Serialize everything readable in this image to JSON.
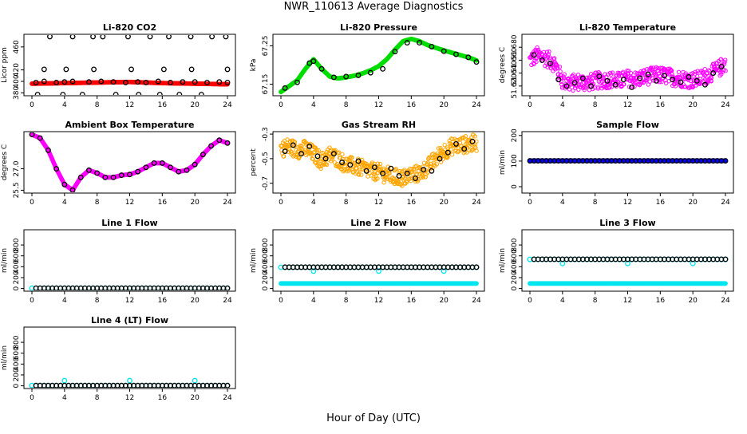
{
  "page": {
    "title": "NWR_110613  Average Diagnostics",
    "xlabel": "Hour of Day (UTC)"
  },
  "colors": {
    "red": "#ff0000",
    "green": "#00dd00",
    "magenta": "#ff00ff",
    "orange": "#ffa500",
    "blue": "#0000ff",
    "cyan": "#00e5ee",
    "black": "#000000"
  },
  "chart_data": [
    {
      "id": "li820-co2",
      "type": "scatter",
      "title": "Li-820 CO2",
      "ylabel": "Licor ppm",
      "xlim": [
        0,
        24
      ],
      "ylim": [
        375,
        482
      ],
      "xticks": [
        0,
        4,
        8,
        12,
        16,
        20,
        24
      ],
      "yticks": [
        380,
        400,
        420,
        460
      ],
      "ytick_labels": [
        "380",
        "400",
        "420",
        "460"
      ],
      "series": [
        {
          "name": "dense",
          "color": "red",
          "style": "dense",
          "x": [
            0,
            4,
            8,
            12,
            16,
            20,
            24
          ],
          "y": [
            396,
            397,
            398,
            399,
            397,
            396,
            395
          ]
        },
        {
          "name": "avg-low",
          "color": "black",
          "style": "circle",
          "x": [
            0.5,
            1.5,
            3,
            4,
            5,
            7,
            8.5,
            10,
            11.5,
            13,
            14,
            15.5,
            17,
            18.5,
            20,
            21.5,
            23,
            24
          ],
          "y": [
            398,
            400,
            398,
            399,
            400,
            399,
            400,
            399,
            398,
            399,
            398,
            400,
            398,
            399,
            399,
            398,
            399,
            398
          ]
        },
        {
          "name": "outliers",
          "color": "black",
          "style": "circle",
          "x": [
            0.7,
            2.2,
            3.8,
            5,
            6.2,
            7.5,
            8.7,
            10.3,
            11.8,
            13.1,
            14.5,
            15.7,
            16.8,
            18.1,
            19.5,
            20.8,
            22.1,
            23.8,
            1.5,
            4.2,
            7.6,
            12.2,
            16.2,
            19.6,
            24
          ],
          "y": [
            377,
            478,
            377,
            478,
            377,
            478,
            478,
            377,
            478,
            377,
            478,
            377,
            478,
            377,
            478,
            377,
            478,
            478,
            421,
            421,
            421,
            421,
            421,
            421,
            421
          ]
        }
      ]
    },
    {
      "id": "li820-pressure",
      "type": "scatter",
      "title": "Li-820 Pressure",
      "ylabel": "kPa",
      "xlim": [
        0,
        24
      ],
      "ylim": [
        67.12,
        67.28
      ],
      "xticks": [
        0,
        4,
        8,
        12,
        16,
        20,
        24
      ],
      "yticks": [
        67.15,
        67.25
      ],
      "ytick_labels": [
        "67.15",
        "67.25"
      ],
      "series": [
        {
          "name": "dense",
          "color": "green",
          "style": "dense",
          "x": [
            0,
            1,
            2,
            3,
            4,
            5,
            6,
            7,
            8,
            9,
            10,
            11,
            12,
            13,
            14,
            15,
            16,
            17,
            18,
            19,
            20,
            21,
            22,
            23,
            24
          ],
          "y": [
            67.13,
            67.145,
            67.16,
            67.19,
            67.215,
            67.19,
            67.17,
            67.165,
            67.168,
            67.172,
            67.178,
            67.186,
            67.197,
            67.215,
            67.24,
            67.262,
            67.268,
            67.262,
            67.252,
            67.245,
            67.238,
            67.232,
            67.226,
            67.22,
            67.212
          ]
        },
        {
          "name": "avg",
          "color": "black",
          "style": "circle",
          "x": [
            0.5,
            2,
            3.5,
            4,
            5,
            6.5,
            8,
            9.5,
            11,
            12.5,
            14,
            15.5,
            17,
            18.5,
            20,
            21.5,
            23,
            24
          ],
          "y": [
            67.14,
            67.155,
            67.205,
            67.21,
            67.19,
            67.168,
            67.17,
            67.173,
            67.18,
            67.19,
            67.235,
            67.258,
            67.258,
            67.248,
            67.236,
            67.228,
            67.22,
            67.208
          ]
        }
      ]
    },
    {
      "id": "li820-temperature",
      "type": "scatter",
      "title": "Li-820 Temperature",
      "ylabel": "degrees C",
      "xlim": [
        0,
        24
      ],
      "ylim": [
        51.605,
        51.7
      ],
      "xticks": [
        0,
        4,
        8,
        12,
        16,
        20,
        24
      ],
      "yticks": [
        51.62,
        51.64,
        51.66,
        51.68
      ],
      "ytick_labels": [
        "51.620",
        "51.640",
        "51.660",
        "51.680"
      ],
      "series": [
        {
          "name": "dense",
          "color": "magenta",
          "style": "cloud",
          "x": [
            0,
            1,
            2,
            3,
            4,
            5,
            6,
            7,
            8,
            9,
            10,
            11,
            12,
            13,
            14,
            15,
            16,
            17,
            18,
            19,
            20,
            21,
            22,
            23,
            24
          ],
          "y": [
            51.66,
            51.668,
            51.663,
            51.655,
            51.628,
            51.624,
            51.627,
            51.625,
            51.628,
            51.629,
            51.63,
            51.628,
            51.632,
            51.63,
            51.634,
            51.636,
            51.637,
            51.635,
            51.632,
            51.631,
            51.629,
            51.632,
            51.638,
            51.645,
            51.655
          ],
          "spread": 0.013
        },
        {
          "name": "avg",
          "color": "black",
          "style": "circle",
          "x": [
            0.5,
            1.5,
            2.5,
            3.5,
            4.5,
            5.5,
            6.5,
            7.5,
            8.5,
            9.5,
            10.5,
            11.5,
            12.5,
            13.5,
            14.5,
            15.5,
            16.5,
            17.5,
            18.5,
            19.5,
            20.5,
            21.5,
            22.5,
            23.5
          ],
          "y": [
            51.668,
            51.66,
            51.655,
            51.63,
            51.62,
            51.625,
            51.632,
            51.62,
            51.635,
            51.628,
            51.622,
            51.63,
            51.618,
            51.632,
            51.638,
            51.628,
            51.636,
            51.63,
            51.626,
            51.634,
            51.628,
            51.622,
            51.64,
            51.65
          ]
        }
      ]
    },
    {
      "id": "ambient-box-temperature",
      "type": "scatter",
      "title": "Ambient Box Temperature",
      "ylabel": "degrees C",
      "xlim": [
        0,
        24
      ],
      "ylim": [
        25.3,
        29.6
      ],
      "xticks": [
        0,
        4,
        8,
        12,
        16,
        20,
        24
      ],
      "yticks": [
        25.5,
        27.0
      ],
      "ytick_labels": [
        "25.5",
        "27.0"
      ],
      "series": [
        {
          "name": "dense",
          "color": "magenta",
          "style": "dense",
          "x": [
            0,
            1,
            2,
            3,
            4,
            5,
            6,
            7,
            8,
            9,
            10,
            11,
            12,
            13,
            14,
            15,
            16,
            17,
            18,
            19,
            20,
            21,
            22,
            23,
            24
          ],
          "y": [
            29.4,
            29.15,
            28.3,
            27.0,
            25.9,
            25.5,
            26.4,
            26.9,
            26.7,
            26.4,
            26.4,
            26.55,
            26.6,
            26.8,
            27.1,
            27.4,
            27.4,
            27.1,
            26.8,
            26.9,
            27.3,
            28.0,
            28.6,
            29.0,
            28.8
          ]
        },
        {
          "name": "avg",
          "color": "black",
          "style": "circle",
          "x": [
            0,
            1,
            2,
            3,
            4,
            5,
            6,
            7,
            8,
            9,
            10,
            11,
            12,
            13,
            14,
            15,
            16,
            17,
            18,
            19,
            20,
            21,
            22,
            23,
            24
          ],
          "y": [
            29.4,
            29.15,
            28.3,
            27.0,
            25.9,
            25.5,
            26.4,
            26.9,
            26.7,
            26.4,
            26.4,
            26.55,
            26.6,
            26.8,
            27.1,
            27.4,
            27.4,
            27.1,
            26.8,
            26.9,
            27.3,
            28.0,
            28.6,
            29.0,
            28.8
          ]
        }
      ]
    },
    {
      "id": "gas-stream-rh",
      "type": "scatter",
      "title": "Gas Stream RH",
      "ylabel": "percent",
      "xlim": [
        0,
        24
      ],
      "ylim": [
        -0.78,
        -0.28
      ],
      "xticks": [
        0,
        4,
        8,
        12,
        16,
        20,
        24
      ],
      "yticks": [
        -0.7,
        -0.5,
        -0.3
      ],
      "ytick_labels": [
        "-0.7",
        "-0.5",
        "-0.3"
      ],
      "series": [
        {
          "name": "dense",
          "color": "orange",
          "style": "cloud",
          "x": [
            0,
            1,
            2,
            3,
            4,
            5,
            6,
            7,
            8,
            9,
            10,
            11,
            12,
            13,
            14,
            15,
            16,
            17,
            18,
            19,
            20,
            21,
            22,
            23,
            24
          ],
          "y": [
            -0.42,
            -0.4,
            -0.43,
            -0.42,
            -0.46,
            -0.52,
            -0.47,
            -0.5,
            -0.55,
            -0.56,
            -0.58,
            -0.6,
            -0.61,
            -0.63,
            -0.65,
            -0.66,
            -0.63,
            -0.62,
            -0.57,
            -0.5,
            -0.44,
            -0.4,
            -0.39,
            -0.38,
            -0.37
          ],
          "spread": 0.07
        },
        {
          "name": "avg",
          "color": "black",
          "style": "circle",
          "x": [
            0.5,
            1.5,
            2.5,
            3.5,
            4.5,
            5.5,
            6.5,
            7.5,
            8.5,
            9.5,
            10.5,
            11.5,
            12.5,
            13.5,
            14.5,
            15.5,
            16.5,
            17.5,
            18.5,
            19.5,
            20.5,
            21.5,
            22.5,
            23.5
          ],
          "y": [
            -0.44,
            -0.39,
            -0.46,
            -0.4,
            -0.48,
            -0.5,
            -0.46,
            -0.53,
            -0.55,
            -0.52,
            -0.6,
            -0.57,
            -0.62,
            -0.58,
            -0.64,
            -0.62,
            -0.66,
            -0.59,
            -0.6,
            -0.5,
            -0.45,
            -0.38,
            -0.42,
            -0.36
          ]
        }
      ]
    },
    {
      "id": "sample-flow",
      "type": "scatter",
      "title": "Sample Flow",
      "ylabel": "ml/min",
      "xlim": [
        0,
        24
      ],
      "ylim": [
        -25,
        215
      ],
      "xticks": [
        0,
        4,
        8,
        12,
        16,
        20,
        24
      ],
      "yticks": [
        0,
        100,
        200
      ],
      "ytick_labels": [
        "0",
        "100",
        "200"
      ],
      "series": [
        {
          "name": "dense",
          "color": "blue",
          "style": "dense",
          "x": [
            0,
            24
          ],
          "y": [
            101,
            101
          ]
        },
        {
          "name": "avg",
          "color": "black",
          "style": "circle",
          "x": [
            0,
            24
          ],
          "y": [
            101,
            101
          ],
          "step": 0.5
        }
      ]
    },
    {
      "id": "line1-flow",
      "type": "scatter",
      "title": "Line 1 Flow",
      "ylabel": "ml/min",
      "xlim": [
        0,
        24
      ],
      "ylim": [
        -50,
        1080
      ],
      "xticks": [
        0,
        4,
        8,
        12,
        16,
        20,
        24
      ],
      "yticks": [
        0,
        200,
        400,
        600,
        800
      ],
      "ytick_labels": [
        "0",
        "200",
        "400",
        "600",
        "800"
      ],
      "series": [
        {
          "name": "dense",
          "color": "cyan",
          "style": "circle",
          "x": [
            0,
            24
          ],
          "y": [
            5,
            5
          ],
          "step": 0.5
        },
        {
          "name": "avg",
          "color": "black",
          "style": "circle",
          "x": [
            0.5,
            24
          ],
          "y": [
            5,
            5
          ],
          "step": 0.5
        }
      ]
    },
    {
      "id": "line2-flow",
      "type": "scatter",
      "title": "Line 2 Flow",
      "ylabel": "ml/min",
      "xlim": [
        0,
        24
      ],
      "ylim": [
        -50,
        1080
      ],
      "xticks": [
        0,
        4,
        8,
        12,
        16,
        20,
        24
      ],
      "yticks": [
        0,
        200,
        400,
        600,
        800
      ],
      "ytick_labels": [
        "0",
        "200",
        "400",
        "600",
        "800"
      ],
      "series": [
        {
          "name": "low-cyan",
          "color": "cyan",
          "style": "dense",
          "x": [
            0,
            24
          ],
          "y": [
            92,
            92
          ]
        },
        {
          "name": "high-cyan",
          "color": "cyan",
          "style": "circle",
          "x": [
            0,
            24
          ],
          "y": [
            390,
            390
          ],
          "step": 0.5
        },
        {
          "name": "cyan-dips",
          "color": "cyan",
          "style": "circle",
          "x": [
            4,
            12,
            20
          ],
          "y": [
            320,
            320,
            320
          ]
        },
        {
          "name": "avg",
          "color": "black",
          "style": "circle",
          "x": [
            0.5,
            24
          ],
          "y": [
            392,
            392
          ],
          "step": 0.5
        }
      ]
    },
    {
      "id": "line3-flow",
      "type": "scatter",
      "title": "Line 3 Flow",
      "ylabel": "ml/min",
      "xlim": [
        0,
        24
      ],
      "ylim": [
        -50,
        1080
      ],
      "xticks": [
        0,
        4,
        8,
        12,
        16,
        20,
        24
      ],
      "yticks": [
        0,
        200,
        400,
        600,
        800
      ],
      "ytick_labels": [
        "0",
        "200",
        "400",
        "600",
        "800"
      ],
      "series": [
        {
          "name": "low-cyan",
          "color": "cyan",
          "style": "dense",
          "x": [
            0,
            24
          ],
          "y": [
            92,
            92
          ]
        },
        {
          "name": "high-cyan",
          "color": "cyan",
          "style": "circle",
          "x": [
            0,
            24
          ],
          "y": [
            535,
            535
          ],
          "step": 0.5
        },
        {
          "name": "cyan-dips",
          "color": "cyan",
          "style": "circle",
          "x": [
            4,
            12,
            20
          ],
          "y": [
            460,
            460,
            460
          ]
        },
        {
          "name": "avg",
          "color": "black",
          "style": "circle",
          "x": [
            0.5,
            24
          ],
          "y": [
            538,
            538
          ],
          "step": 0.5
        }
      ]
    },
    {
      "id": "line4-lt-flow",
      "type": "scatter",
      "title": "Line 4 (LT) Flow",
      "ylabel": "ml/min",
      "xlim": [
        0,
        24
      ],
      "ylim": [
        -50,
        1080
      ],
      "xticks": [
        0,
        4,
        8,
        12,
        16,
        20,
        24
      ],
      "yticks": [
        0,
        200,
        400,
        600,
        800
      ],
      "ytick_labels": [
        "0",
        "200",
        "400",
        "600",
        "800"
      ],
      "series": [
        {
          "name": "dense",
          "color": "cyan",
          "style": "circle",
          "x": [
            0,
            24
          ],
          "y": [
            5,
            5
          ],
          "step": 0.5
        },
        {
          "name": "cyan-spikes",
          "color": "cyan",
          "style": "circle",
          "x": [
            4,
            12,
            20
          ],
          "y": [
            95,
            95,
            95
          ]
        },
        {
          "name": "avg",
          "color": "black",
          "style": "circle",
          "x": [
            0.5,
            24
          ],
          "y": [
            5,
            5
          ],
          "step": 0.5
        }
      ]
    }
  ]
}
